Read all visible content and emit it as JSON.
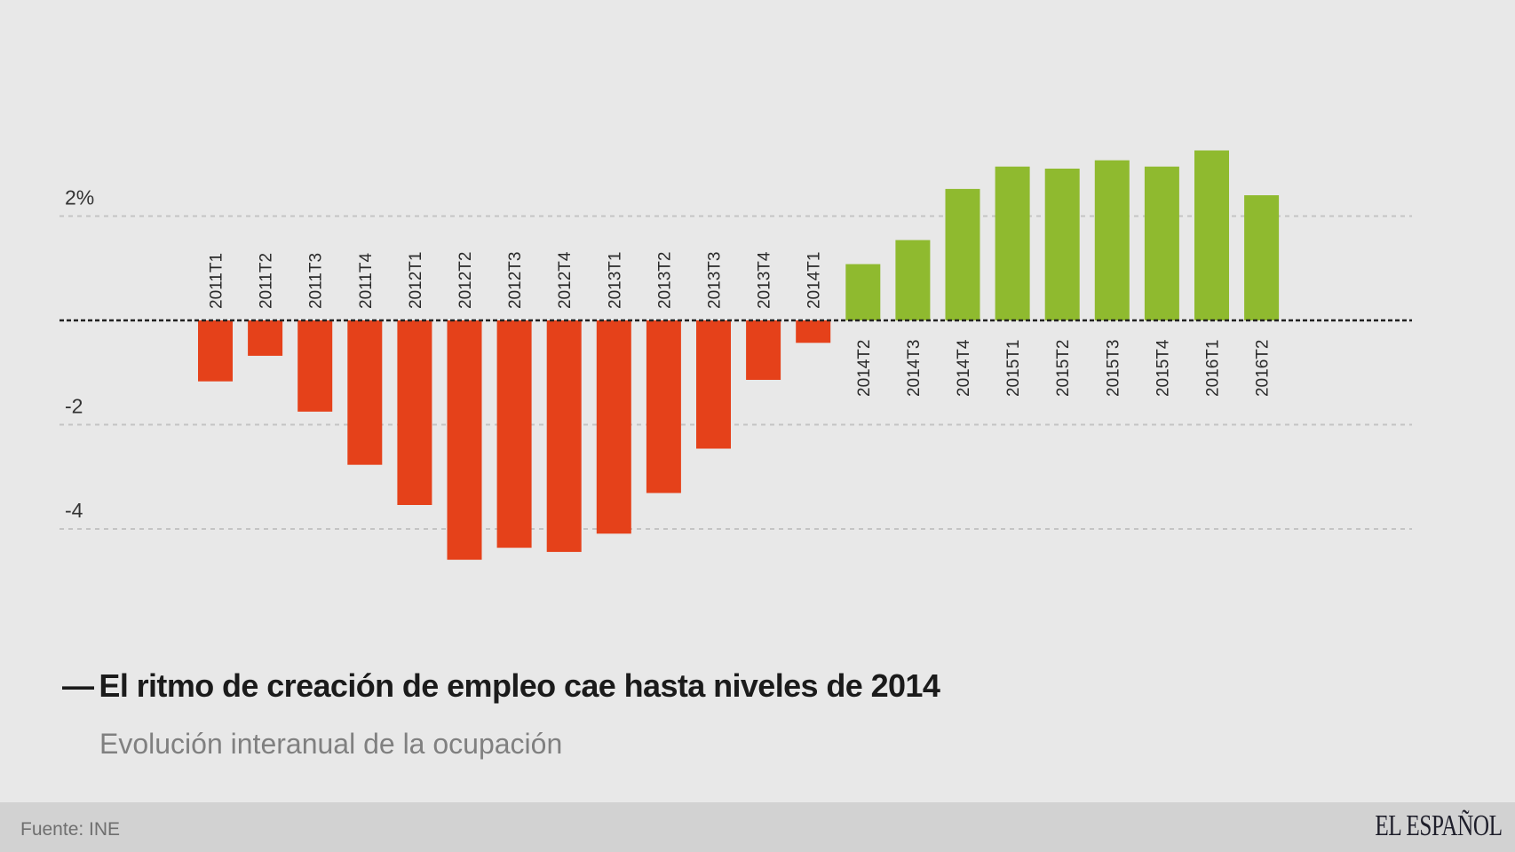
{
  "header": {
    "title_dash": "—",
    "title": "El ritmo de creación de empleo cae hasta niveles de 2014",
    "subtitle": "Evolución interanual de la ocupación"
  },
  "footer": {
    "source": "Fuente: INE",
    "logo": "EL ESPAÑOL"
  },
  "colors": {
    "negative": "#e5411a",
    "positive": "#8fba2f",
    "background": "#e8e8e8",
    "footer_background": "#d2d2d2"
  },
  "chart_data": {
    "type": "bar",
    "title": "El ritmo de creación de empleo cae hasta niveles de 2014",
    "subtitle": "Evolución interanual de la ocupación",
    "xlabel": "",
    "ylabel": "",
    "ylim": [
      -5,
      4
    ],
    "grid": true,
    "legend": "none",
    "y_ticks": [
      {
        "value": 2,
        "label": "2%"
      },
      {
        "value": -2,
        "label": "-2"
      },
      {
        "value": -4,
        "label": "-4"
      }
    ],
    "categories": [
      "2011T1",
      "2011T2",
      "2011T3",
      "2011T4",
      "2012T1",
      "2012T2",
      "2012T3",
      "2012T4",
      "2013T1",
      "2013T2",
      "2013T3",
      "2013T4",
      "2014T1",
      "2014T2",
      "2014T3",
      "2014T4",
      "2015T1",
      "2015T2",
      "2015T3",
      "2015T4",
      "2016T1",
      "2016T2"
    ],
    "values": [
      -1.17,
      -0.68,
      -1.75,
      -2.77,
      -3.54,
      -4.59,
      -4.36,
      -4.44,
      -4.09,
      -3.31,
      -2.46,
      -1.14,
      -0.43,
      1.08,
      1.54,
      2.52,
      2.95,
      2.91,
      3.07,
      2.95,
      3.26,
      2.4
    ],
    "source": "Fuente: INE"
  }
}
